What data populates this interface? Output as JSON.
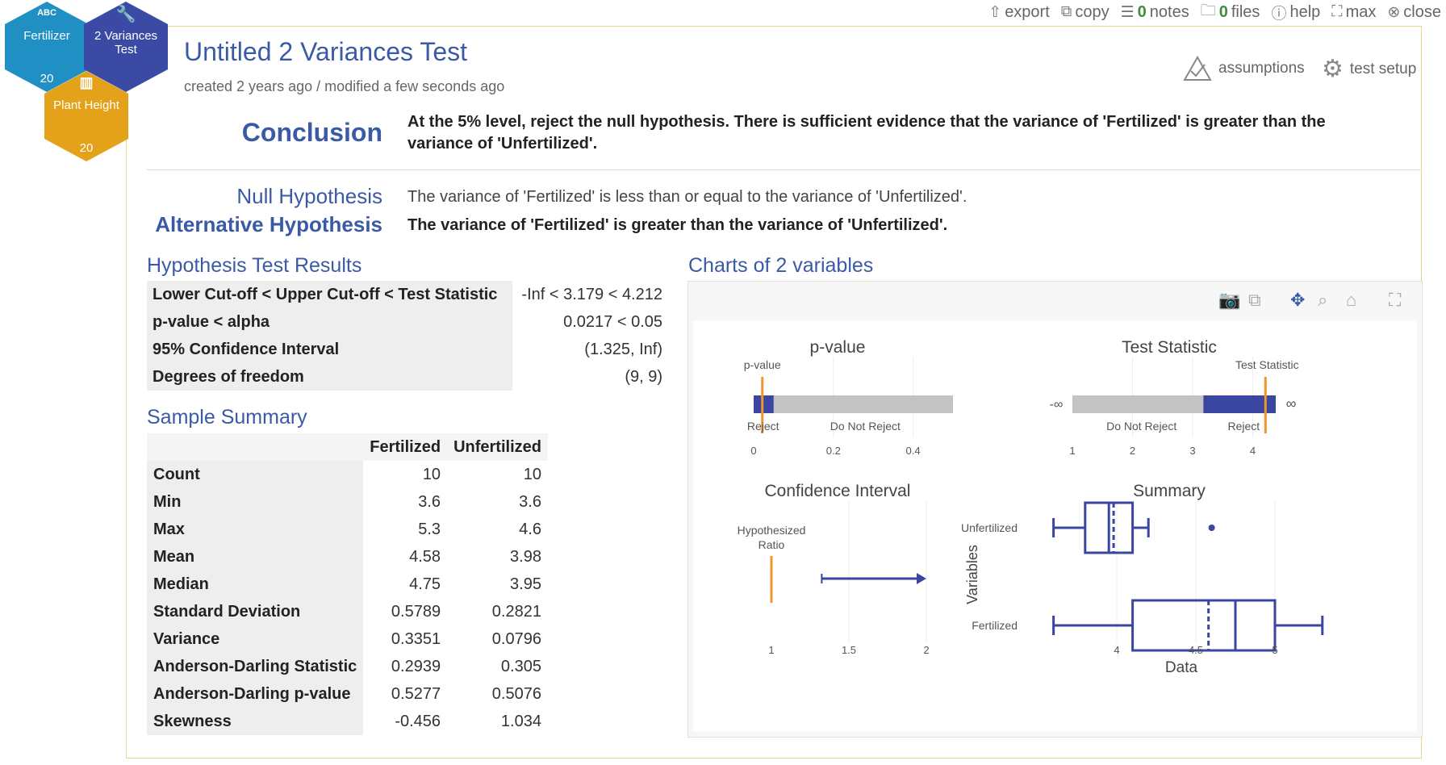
{
  "toolbar": {
    "export": "export",
    "copy": "copy",
    "notes_count": "0",
    "notes": "notes",
    "files_count": "0",
    "files": "files",
    "help": "help",
    "max": "max",
    "close": "close"
  },
  "hexes": {
    "fertilizer": {
      "top": "ABC",
      "label": "Fertilizer",
      "n": "20",
      "color": "#1f8fc4"
    },
    "test": {
      "label": "2 Variances Test",
      "color": "#3b4ba5"
    },
    "plant": {
      "label": "Plant Height",
      "n": "20",
      "color": "#e3a21a"
    }
  },
  "header": {
    "title": "Untitled 2 Variances Test",
    "subtitle": "created 2 years ago / modified a few seconds ago",
    "assumptions": "assumptions",
    "test_setup": "test setup"
  },
  "conclusion": {
    "label": "Conclusion",
    "text": "At the 5% level, reject the null hypothesis. There is sufficient evidence that the variance of 'Fertilized' is greater than the variance of 'Unfertilized'."
  },
  "hypotheses": {
    "null_label": "Null Hypothesis",
    "null_text": "The variance of 'Fertilized' is less than or equal to the variance of 'Unfertilized'.",
    "alt_label": "Alternative Hypothesis",
    "alt_text": "The variance of 'Fertilized' is greater than the variance of 'Unfertilized'."
  },
  "results": {
    "title": "Hypothesis Test Results",
    "rows": [
      {
        "label": "Lower Cut-off < Upper Cut-off < Test Statistic",
        "value": "-Inf < 3.179 < 4.212"
      },
      {
        "label": "p-value < alpha",
        "value": "0.0217 < 0.05"
      },
      {
        "label": "95% Confidence Interval",
        "value": "(1.325, Inf)"
      },
      {
        "label": "Degrees of freedom",
        "value": "(9, 9)"
      }
    ]
  },
  "summary": {
    "title": "Sample Summary",
    "columns": [
      "Fertilized",
      "Unfertilized"
    ],
    "rows": [
      {
        "label": "Count",
        "a": "10",
        "b": "10"
      },
      {
        "label": "Min",
        "a": "3.6",
        "b": "3.6"
      },
      {
        "label": "Max",
        "a": "5.3",
        "b": "4.6"
      },
      {
        "label": "Mean",
        "a": "4.58",
        "b": "3.98"
      },
      {
        "label": "Median",
        "a": "4.75",
        "b": "3.95"
      },
      {
        "label": "Standard Deviation",
        "a": "0.5789",
        "b": "0.2821"
      },
      {
        "label": "Variance",
        "a": "0.3351",
        "b": "0.0796"
      },
      {
        "label": "Anderson-Darling Statistic",
        "a": "0.2939",
        "b": "0.305"
      },
      {
        "label": "Anderson-Darling p-value",
        "a": "0.5277",
        "b": "0.5076"
      },
      {
        "label": "Skewness",
        "a": "-0.456",
        "b": "1.034"
      }
    ]
  },
  "charts_title": "Charts of 2 variables",
  "colors": {
    "accent": "#3b5aa6",
    "navy": "#3a46a0",
    "orange": "#f0962c",
    "gray": "#c3c3c3"
  },
  "chart_data": [
    {
      "type": "bar",
      "title": "p-value",
      "marker_label": "p-value",
      "marker": 0.0217,
      "reject_region": [
        0,
        0.05
      ],
      "xlim": [
        0,
        0.5
      ],
      "ticks": [
        "0",
        "0.2",
        "0.4"
      ],
      "region_labels": [
        "Reject",
        "Do Not Reject"
      ]
    },
    {
      "type": "bar",
      "title": "Test Statistic",
      "marker_label": "Test Statistic",
      "marker": 4.212,
      "cutoff": 3.179,
      "xlim": [
        1,
        4.5
      ],
      "ticks": [
        "1",
        "2",
        "3",
        "4"
      ],
      "end_labels": [
        "-∞",
        "∞"
      ],
      "region_labels": [
        "Do Not Reject",
        "Reject"
      ]
    },
    {
      "type": "line",
      "title": "Confidence Interval",
      "marker_label": "Hypothesized Ratio",
      "hypothesized": 1,
      "interval_lower": 1.325,
      "xlim": [
        0.75,
        2.05
      ],
      "ticks": [
        "1",
        "1.5",
        "2"
      ]
    },
    {
      "type": "box",
      "title": "Summary",
      "xlabel": "Data",
      "ylabel": "Variables",
      "xlim": [
        3.55,
        5.35
      ],
      "ticks": [
        "4",
        "4.5",
        "5"
      ],
      "series": [
        {
          "name": "Unfertilized",
          "min": 3.6,
          "q1": 3.8,
          "median": 3.95,
          "q3": 4.1,
          "max": 4.2,
          "mean": 3.98,
          "outliers": [
            4.6
          ]
        },
        {
          "name": "Fertilized",
          "min": 3.6,
          "q1": 4.1,
          "median": 4.75,
          "q3": 5.0,
          "max": 5.3,
          "mean": 4.58,
          "outliers": []
        }
      ]
    }
  ]
}
